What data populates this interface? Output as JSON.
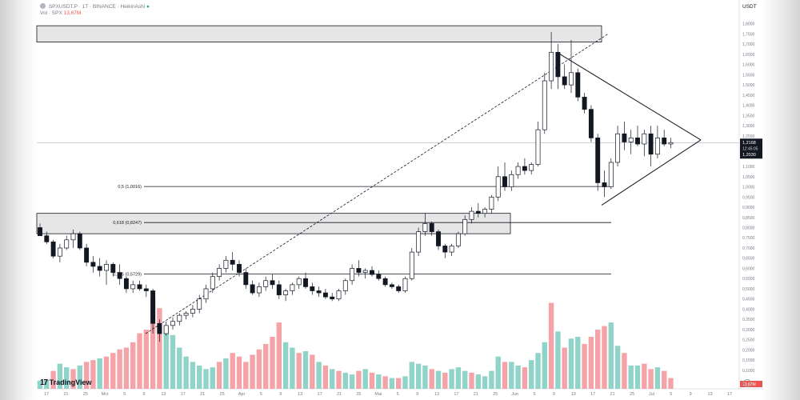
{
  "header": {
    "symbol_line": "SPXUSDT.P · 1T · BINANCE · HeikinAshi",
    "volume_label": "Vol · SPX",
    "volume_value": "13,67M"
  },
  "currency_label": "USDT",
  "brand": "TradingView",
  "colors": {
    "up": "#26a69a",
    "down": "#ef5350",
    "vol_up": "#8fd3c9",
    "vol_down": "#f4a3a8",
    "candle_up_fill": "#ffffff",
    "candle_down_fill": "#131722"
  },
  "price_axis": {
    "ticks": [
      "1,8000",
      "1,7500",
      "1,7000",
      "1,6500",
      "1,6000",
      "1,5500",
      "1,5000",
      "1,4500",
      "1,4000",
      "1,3500",
      "1,3000",
      "1,2500",
      "1,2000",
      "1,1500",
      "1,1000",
      "1,0500",
      "1,0000",
      "0,9500",
      "0,9000",
      "0,8500",
      "0,8000",
      "0,7500",
      "0,7000",
      "0,6500",
      "0,6000",
      "0,5500",
      "0,5000",
      "0,4500",
      "0,4000",
      "0,3500",
      "0,3000",
      "0,2500",
      "0,2000",
      "0,1500",
      "0,1000"
    ],
    "last_price": "1,2168",
    "countdown": "12:45:05",
    "prev_price": "1,2030",
    "volume_badge": "13,67M"
  },
  "time_axis": {
    "labels": [
      "17",
      "21",
      "25",
      "Mrz",
      "5",
      "9",
      "13",
      "17",
      "21",
      "25",
      "Apr",
      "5",
      "9",
      "13",
      "17",
      "21",
      "25",
      "Mai",
      "5",
      "9",
      "13",
      "17",
      "21",
      "25",
      "Jun",
      "5",
      "9",
      "13",
      "17",
      "21",
      "25",
      "Jul",
      "5",
      "9",
      "13",
      "17"
    ]
  },
  "fib_levels": [
    {
      "label": "0,5 (1,0016)",
      "price": 1.0016
    },
    {
      "label": "0,618 (0,8247)",
      "price": 0.8247
    },
    {
      "label": "0,786 (0,5729)",
      "price": 0.5729
    }
  ],
  "zones": [
    {
      "name": "resistance-zone",
      "from": 1.71,
      "to": 1.79
    },
    {
      "name": "support-zone",
      "from": 0.77,
      "to": 0.87
    }
  ],
  "chart_data": {
    "type": "candlestick",
    "style": "HeikinAshi",
    "interval": "1D",
    "symbol": "SPXUSDT.P",
    "ylim": [
      0.08,
      1.83
    ],
    "current_price": 1.2168,
    "x_range": [
      "Feb",
      "Jul"
    ],
    "candles": [
      [
        0.8,
        0.82,
        0.76,
        0.76
      ],
      [
        0.76,
        0.78,
        0.72,
        0.73
      ],
      [
        0.73,
        0.74,
        0.65,
        0.66
      ],
      [
        0.66,
        0.72,
        0.63,
        0.7
      ],
      [
        0.7,
        0.76,
        0.69,
        0.74
      ],
      [
        0.74,
        0.79,
        0.7,
        0.77
      ],
      [
        0.77,
        0.78,
        0.69,
        0.7
      ],
      [
        0.7,
        0.72,
        0.61,
        0.63
      ],
      [
        0.63,
        0.66,
        0.58,
        0.61
      ],
      [
        0.61,
        0.65,
        0.56,
        0.59
      ],
      [
        0.59,
        0.64,
        0.52,
        0.62
      ],
      [
        0.62,
        0.63,
        0.56,
        0.58
      ],
      [
        0.58,
        0.62,
        0.52,
        0.55
      ],
      [
        0.55,
        0.56,
        0.48,
        0.5
      ],
      [
        0.5,
        0.54,
        0.48,
        0.52
      ],
      [
        0.52,
        0.54,
        0.49,
        0.5
      ],
      [
        0.5,
        0.52,
        0.46,
        0.49
      ],
      [
        0.49,
        0.5,
        0.28,
        0.33
      ],
      [
        0.33,
        0.35,
        0.24,
        0.28
      ],
      [
        0.28,
        0.34,
        0.27,
        0.32
      ],
      [
        0.32,
        0.36,
        0.3,
        0.34
      ],
      [
        0.34,
        0.38,
        0.32,
        0.37
      ],
      [
        0.37,
        0.39,
        0.35,
        0.38
      ],
      [
        0.38,
        0.42,
        0.36,
        0.4
      ],
      [
        0.4,
        0.47,
        0.38,
        0.45
      ],
      [
        0.45,
        0.52,
        0.43,
        0.5
      ],
      [
        0.5,
        0.58,
        0.48,
        0.56
      ],
      [
        0.56,
        0.62,
        0.54,
        0.6
      ],
      [
        0.6,
        0.66,
        0.58,
        0.64
      ],
      [
        0.64,
        0.68,
        0.59,
        0.62
      ],
      [
        0.62,
        0.64,
        0.56,
        0.58
      ],
      [
        0.58,
        0.6,
        0.5,
        0.52
      ],
      [
        0.52,
        0.54,
        0.47,
        0.48
      ],
      [
        0.48,
        0.53,
        0.46,
        0.51
      ],
      [
        0.51,
        0.56,
        0.49,
        0.54
      ],
      [
        0.54,
        0.57,
        0.5,
        0.52
      ],
      [
        0.52,
        0.54,
        0.45,
        0.47
      ],
      [
        0.47,
        0.5,
        0.44,
        0.49
      ],
      [
        0.49,
        0.53,
        0.47,
        0.52
      ],
      [
        0.52,
        0.56,
        0.5,
        0.55
      ],
      [
        0.55,
        0.58,
        0.5,
        0.51
      ],
      [
        0.51,
        0.53,
        0.47,
        0.49
      ],
      [
        0.49,
        0.51,
        0.46,
        0.48
      ],
      [
        0.48,
        0.5,
        0.45,
        0.46
      ],
      [
        0.46,
        0.48,
        0.44,
        0.45
      ],
      [
        0.45,
        0.5,
        0.44,
        0.49
      ],
      [
        0.49,
        0.55,
        0.47,
        0.54
      ],
      [
        0.54,
        0.62,
        0.52,
        0.6
      ],
      [
        0.6,
        0.64,
        0.56,
        0.58
      ],
      [
        0.58,
        0.6,
        0.55,
        0.59
      ],
      [
        0.59,
        0.61,
        0.56,
        0.57
      ],
      [
        0.57,
        0.59,
        0.54,
        0.55
      ],
      [
        0.55,
        0.56,
        0.51,
        0.52
      ],
      [
        0.52,
        0.53,
        0.5,
        0.51
      ],
      [
        0.51,
        0.52,
        0.48,
        0.49
      ],
      [
        0.49,
        0.56,
        0.48,
        0.55
      ],
      [
        0.55,
        0.7,
        0.54,
        0.68
      ],
      [
        0.68,
        0.8,
        0.66,
        0.78
      ],
      [
        0.78,
        0.87,
        0.76,
        0.82
      ],
      [
        0.82,
        0.83,
        0.76,
        0.78
      ],
      [
        0.78,
        0.79,
        0.69,
        0.71
      ],
      [
        0.71,
        0.72,
        0.65,
        0.68
      ],
      [
        0.68,
        0.72,
        0.66,
        0.71
      ],
      [
        0.71,
        0.78,
        0.7,
        0.77
      ],
      [
        0.77,
        0.86,
        0.76,
        0.84
      ],
      [
        0.84,
        0.9,
        0.82,
        0.88
      ],
      [
        0.88,
        0.92,
        0.85,
        0.87
      ],
      [
        0.87,
        0.9,
        0.85,
        0.89
      ],
      [
        0.89,
        0.96,
        0.87,
        0.95
      ],
      [
        0.95,
        1.1,
        0.93,
        1.05
      ],
      [
        1.05,
        1.12,
        0.98,
        1.0
      ],
      [
        1.0,
        1.08,
        0.98,
        1.06
      ],
      [
        1.06,
        1.12,
        1.04,
        1.1
      ],
      [
        1.1,
        1.14,
        1.06,
        1.08
      ],
      [
        1.08,
        1.12,
        1.06,
        1.11
      ],
      [
        1.11,
        1.32,
        1.1,
        1.28
      ],
      [
        1.28,
        1.56,
        1.26,
        1.52
      ],
      [
        1.52,
        1.76,
        1.48,
        1.66
      ],
      [
        1.66,
        1.7,
        1.48,
        1.54
      ],
      [
        1.54,
        1.6,
        1.48,
        1.5
      ],
      [
        1.5,
        1.72,
        1.46,
        1.56
      ],
      [
        1.56,
        1.58,
        1.42,
        1.44
      ],
      [
        1.44,
        1.46,
        1.36,
        1.38
      ],
      [
        1.38,
        1.4,
        1.22,
        1.24
      ],
      [
        1.24,
        1.26,
        0.98,
        1.02
      ],
      [
        1.02,
        1.08,
        0.95,
        1.0
      ],
      [
        1.0,
        1.14,
        0.99,
        1.12
      ],
      [
        1.12,
        1.3,
        1.1,
        1.26
      ],
      [
        1.26,
        1.32,
        1.18,
        1.22
      ],
      [
        1.22,
        1.28,
        1.16,
        1.24
      ],
      [
        1.24,
        1.3,
        1.2,
        1.21
      ],
      [
        1.21,
        1.28,
        1.15,
        1.26
      ],
      [
        1.26,
        1.3,
        1.1,
        1.16
      ],
      [
        1.16,
        1.3,
        1.14,
        1.24
      ],
      [
        1.24,
        1.28,
        1.2,
        1.21
      ],
      [
        1.21,
        1.24,
        1.19,
        1.217
      ]
    ],
    "volume_note": "relative bar heights, peak ≈ 13.67M",
    "volume": [
      [
        0.09,
        1
      ],
      [
        0.1,
        1
      ],
      [
        0.2,
        0
      ],
      [
        0.28,
        1
      ],
      [
        0.24,
        1
      ],
      [
        0.22,
        0
      ],
      [
        0.26,
        1
      ],
      [
        0.3,
        0
      ],
      [
        0.32,
        0
      ],
      [
        0.34,
        1
      ],
      [
        0.36,
        0
      ],
      [
        0.4,
        0
      ],
      [
        0.44,
        0
      ],
      [
        0.46,
        0
      ],
      [
        0.52,
        0
      ],
      [
        0.62,
        0
      ],
      [
        0.66,
        0
      ],
      [
        1.0,
        0
      ],
      [
        0.9,
        0
      ],
      [
        0.7,
        1
      ],
      [
        0.6,
        1
      ],
      [
        0.46,
        1
      ],
      [
        0.36,
        1
      ],
      [
        0.3,
        1
      ],
      [
        0.26,
        1
      ],
      [
        0.22,
        1
      ],
      [
        0.24,
        1
      ],
      [
        0.3,
        0
      ],
      [
        0.34,
        1
      ],
      [
        0.4,
        0
      ],
      [
        0.36,
        0
      ],
      [
        0.3,
        0
      ],
      [
        0.38,
        0
      ],
      [
        0.44,
        0
      ],
      [
        0.5,
        0
      ],
      [
        0.58,
        0
      ],
      [
        0.74,
        0
      ],
      [
        0.52,
        1
      ],
      [
        0.46,
        1
      ],
      [
        0.4,
        0
      ],
      [
        0.42,
        1
      ],
      [
        0.38,
        0
      ],
      [
        0.3,
        1
      ],
      [
        0.26,
        0
      ],
      [
        0.22,
        1
      ],
      [
        0.2,
        0
      ],
      [
        0.18,
        1
      ],
      [
        0.16,
        1
      ],
      [
        0.2,
        0
      ],
      [
        0.22,
        1
      ],
      [
        0.18,
        0
      ],
      [
        0.16,
        1
      ],
      [
        0.14,
        0
      ],
      [
        0.12,
        1
      ],
      [
        0.12,
        0
      ],
      [
        0.14,
        1
      ],
      [
        0.3,
        1
      ],
      [
        0.28,
        1
      ],
      [
        0.26,
        1
      ],
      [
        0.22,
        0
      ],
      [
        0.2,
        1
      ],
      [
        0.18,
        0
      ],
      [
        0.22,
        1
      ],
      [
        0.24,
        1
      ],
      [
        0.2,
        1
      ],
      [
        0.18,
        0
      ],
      [
        0.16,
        1
      ],
      [
        0.14,
        1
      ],
      [
        0.2,
        1
      ],
      [
        0.36,
        1
      ],
      [
        0.3,
        0
      ],
      [
        0.3,
        1
      ],
      [
        0.26,
        1
      ],
      [
        0.24,
        0
      ],
      [
        0.32,
        1
      ],
      [
        0.4,
        1
      ],
      [
        0.52,
        1
      ],
      [
        0.96,
        0
      ],
      [
        0.64,
        1
      ],
      [
        0.46,
        0
      ],
      [
        0.56,
        1
      ],
      [
        0.58,
        1
      ],
      [
        0.5,
        0
      ],
      [
        0.58,
        0
      ],
      [
        0.66,
        0
      ],
      [
        0.7,
        0
      ],
      [
        0.74,
        1
      ],
      [
        0.48,
        1
      ],
      [
        0.4,
        0
      ],
      [
        0.26,
        1
      ],
      [
        0.26,
        1
      ],
      [
        0.28,
        0
      ],
      [
        0.22,
        0
      ],
      [
        0.24,
        1
      ],
      [
        0.2,
        0
      ],
      [
        0.12,
        0
      ]
    ]
  }
}
